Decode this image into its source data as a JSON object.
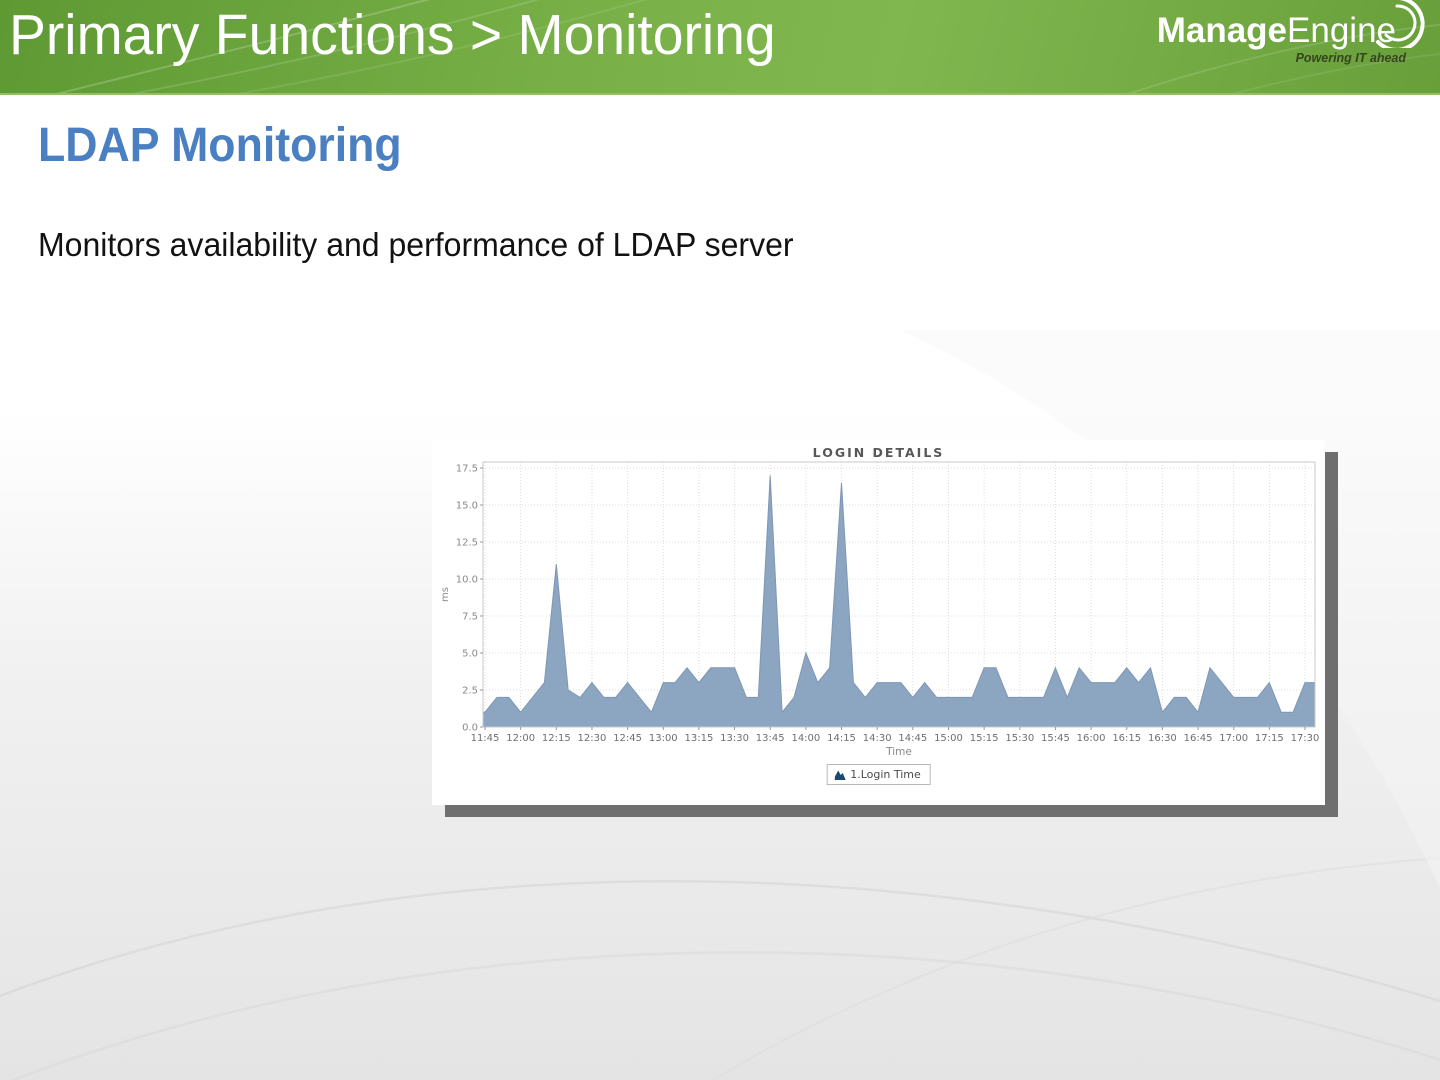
{
  "slide": {
    "header": {
      "title": "Primary Functions > Monitoring"
    },
    "logo": {
      "brand_bold": "Manage",
      "brand_regular": "Engine",
      "tagline": "Powering IT ahead"
    },
    "heading": "LDAP Monitoring",
    "description": "Monitors availability and performance of LDAP server"
  },
  "chart_data": {
    "type": "area",
    "title": "LOGIN DETAILS",
    "xlabel": "Time",
    "ylabel": "ms",
    "ylim": [
      0,
      17.5
    ],
    "grid": true,
    "legend": {
      "label": "1.Login Time",
      "marker_color": "#1a4971",
      "position": "bottom"
    },
    "x_ticks": [
      "11:45",
      "12:00",
      "12:15",
      "12:30",
      "12:45",
      "13:00",
      "13:15",
      "13:30",
      "13:45",
      "14:00",
      "14:15",
      "14:30",
      "14:45",
      "15:00",
      "15:15",
      "15:30",
      "15:45",
      "16:00",
      "16:15",
      "16:30",
      "16:45",
      "17:00",
      "17:15",
      "17:30"
    ],
    "y_ticks": [
      "0.0",
      "2.5",
      "5.0",
      "7.5",
      "10.0",
      "12.5",
      "15.0",
      "17.5"
    ],
    "series": [
      {
        "name": "1.Login Time",
        "fill_color": "#8ca5c1",
        "edge_color": "#7e97b5",
        "x": [
          "11:45",
          "11:50",
          "11:55",
          "12:00",
          "12:05",
          "12:10",
          "12:15",
          "12:20",
          "12:25",
          "12:30",
          "12:35",
          "12:40",
          "12:45",
          "12:50",
          "12:55",
          "13:00",
          "13:05",
          "13:10",
          "13:15",
          "13:20",
          "13:25",
          "13:30",
          "13:35",
          "13:40",
          "13:45",
          "13:50",
          "13:55",
          "14:00",
          "14:05",
          "14:10",
          "14:15",
          "14:20",
          "14:25",
          "14:30",
          "14:35",
          "14:40",
          "14:45",
          "14:50",
          "14:55",
          "15:00",
          "15:05",
          "15:10",
          "15:15",
          "15:20",
          "15:25",
          "15:30",
          "15:35",
          "15:40",
          "15:45",
          "15:50",
          "15:55",
          "16:00",
          "16:05",
          "16:10",
          "16:15",
          "16:20",
          "16:25",
          "16:30",
          "16:35",
          "16:40",
          "16:45",
          "16:50",
          "16:55",
          "17:00",
          "17:05",
          "17:10",
          "17:15",
          "17:20",
          "17:25",
          "17:30"
        ],
        "values": [
          1,
          2,
          2,
          1,
          2,
          3,
          11,
          2.5,
          2,
          3,
          2,
          2,
          3,
          2,
          1,
          3,
          3,
          4,
          3,
          4,
          4,
          4,
          2,
          2,
          17,
          1,
          2,
          5,
          3,
          4,
          16.5,
          3,
          2,
          3,
          3,
          3,
          2,
          3,
          2,
          2,
          2,
          2,
          4,
          4,
          2,
          2,
          2,
          2,
          4,
          2,
          4,
          3,
          3,
          3,
          4,
          3,
          4,
          1,
          2,
          2,
          1,
          4,
          3,
          2,
          2,
          2,
          3,
          1,
          1,
          3
        ]
      }
    ]
  },
  "colors": {
    "header_green": "#74ad43",
    "heading_blue": "#4a80c1",
    "panel_shadow": "#6f6f6f",
    "grid_line": "#dcdcdc",
    "axis_text": "#8a8a8a"
  }
}
